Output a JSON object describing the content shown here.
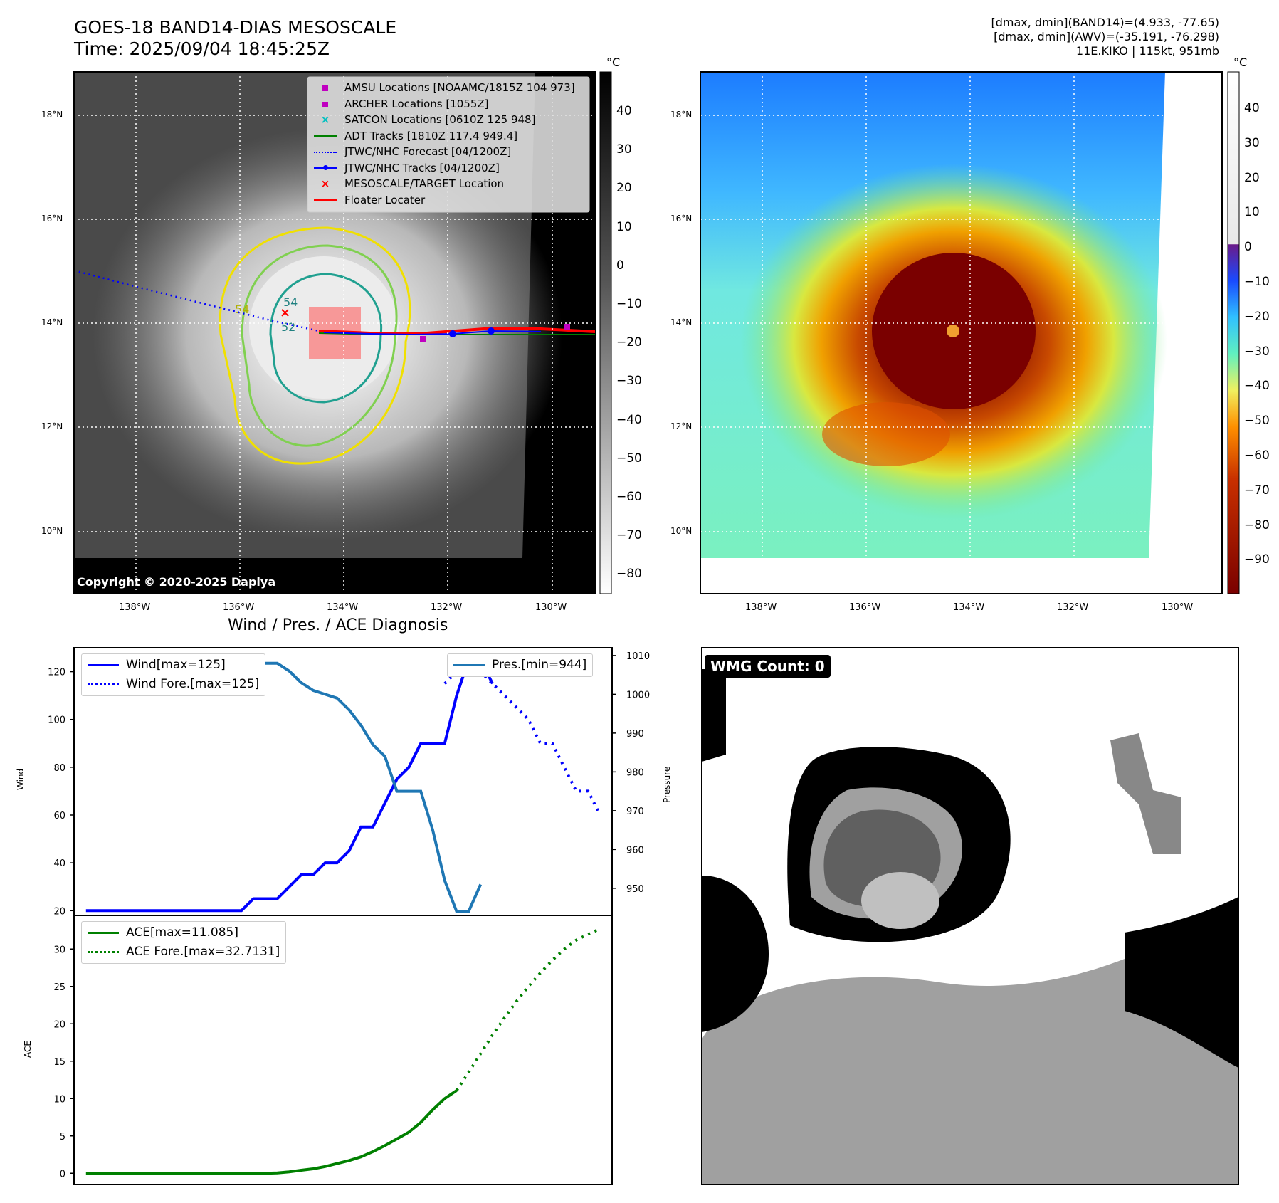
{
  "header": {
    "title_line1": "GOES-18 BAND14-DIAS MESOSCALE",
    "title_line2": "Time: 2025/09/04 18:45:25Z",
    "right_line1": "[dmax, dmin](BAND14)=(4.933, -77.65)",
    "right_line2": "[dmax, dmin](AWV)=(-35.191, -76.298)",
    "right_line3": "11E.KIKO | 115kt, 951mb"
  },
  "map_axes": {
    "lat_ticks": [
      "18°N",
      "16°N",
      "14°N",
      "12°N",
      "10°N"
    ],
    "lon_ticks": [
      "138°W",
      "136°W",
      "134°W",
      "132°W",
      "130°W"
    ]
  },
  "left_map": {
    "copyright": "Copyright © 2020-2025 Dapiya",
    "contour_labels": [
      "54",
      "52",
      "54"
    ],
    "legend": [
      {
        "label": "AMSU Locations [NOAAMC/1815Z 104 973]",
        "color": "#c000c0",
        "marker": "square"
      },
      {
        "label": "ARCHER Locations [1055Z]",
        "color": "#c000c0",
        "marker": "square"
      },
      {
        "label": "SATCON Locations [0610Z 125 948]",
        "color": "#00c0c0",
        "marker": "x"
      },
      {
        "label": "ADT Tracks [1810Z 117.4 949.4]",
        "color": "#008000",
        "marker": "line"
      },
      {
        "label": "JTWC/NHC Forecast [04/1200Z]",
        "color": "#0000ff",
        "marker": "dotted"
      },
      {
        "label": "JTWC/NHC Tracks [04/1200Z]",
        "color": "#0000ff",
        "marker": "line-dot"
      },
      {
        "label": "MESOSCALE/TARGET Location",
        "color": "#ff0000",
        "marker": "x"
      },
      {
        "label": "Floater Locater",
        "color": "#ff0000",
        "marker": "line"
      }
    ],
    "colorbar": {
      "unit": "°C",
      "ticks": [
        "40",
        "30",
        "20",
        "10",
        "0",
        "−10",
        "−20",
        "−30",
        "−40",
        "−50",
        "−60",
        "−70",
        "−80"
      ]
    }
  },
  "right_map": {
    "colorbar": {
      "unit": "°C",
      "ticks": [
        "40",
        "30",
        "20",
        "10",
        "0",
        "−10",
        "−20",
        "−30",
        "−40",
        "−50",
        "−60",
        "−70",
        "−80",
        "−90"
      ]
    }
  },
  "wmg": {
    "badge": "WMG Count: 0"
  },
  "chart_data": [
    {
      "type": "line",
      "title": "Wind / Pres. / ACE Diagnosis",
      "ylabel": "Wind",
      "ylabel_right": "Pressure",
      "ylim": [
        18,
        130
      ],
      "ylim_right": [
        943,
        1012
      ],
      "yticks": [
        20,
        40,
        60,
        80,
        100,
        120
      ],
      "yticks_right": [
        950,
        960,
        970,
        980,
        990,
        1000,
        1010
      ],
      "series": [
        {
          "name": "Wind[max=125]",
          "color": "#0000ff",
          "style": "solid",
          "x": [
            0,
            3,
            6,
            9,
            12,
            13,
            14,
            15,
            16,
            17,
            18,
            19,
            20,
            21,
            22,
            23,
            24,
            25,
            26,
            27,
            28,
            29,
            30,
            31,
            32,
            33,
            34,
            35,
            36,
            37,
            38
          ],
          "values": [
            20,
            20,
            20,
            20,
            20,
            20,
            25,
            25,
            25,
            30,
            35,
            35,
            40,
            40,
            45,
            55,
            55,
            65,
            75,
            80,
            90,
            90,
            90,
            110,
            125,
            125,
            115,
            null,
            null,
            null,
            null
          ]
        },
        {
          "name": "Wind Fore.[max=125]",
          "color": "#0000ff",
          "style": "dotted",
          "x": [
            30,
            31,
            32,
            33,
            34,
            35,
            36,
            37,
            38,
            39,
            40,
            41,
            42,
            43
          ],
          "values": [
            115,
            120,
            125,
            120,
            115,
            110,
            105,
            100,
            90,
            90,
            80,
            70,
            70,
            60
          ]
        },
        {
          "name": "Pres.[min=944]",
          "color": "#1f77b4",
          "style": "solid",
          "axis": "right",
          "x": [
            0,
            6,
            9,
            12,
            13,
            14,
            15,
            16,
            17,
            18,
            19,
            20,
            21,
            22,
            23,
            24,
            25,
            26,
            27,
            28,
            29,
            30,
            31,
            32,
            33,
            34
          ],
          "values": [
            1010,
            1010,
            1010,
            1010,
            1009,
            1009,
            1008,
            1008,
            1006,
            1003,
            1001,
            1000,
            999,
            996,
            992,
            987,
            984,
            975,
            975,
            975,
            965,
            952,
            944,
            944,
            951,
            null
          ]
        }
      ]
    },
    {
      "type": "line",
      "ylabel": "ACE",
      "ylim": [
        -1.5,
        34.5
      ],
      "yticks": [
        0,
        5,
        10,
        15,
        20,
        25,
        30
      ],
      "series": [
        {
          "name": "ACE[max=11.085]",
          "color": "#008000",
          "style": "solid",
          "x": [
            0,
            6,
            12,
            13,
            14,
            15,
            16,
            17,
            18,
            19,
            20,
            21,
            22,
            23,
            24,
            25,
            26,
            27,
            28,
            29,
            30,
            31,
            32,
            33,
            34
          ],
          "values": [
            0,
            0,
            0,
            0,
            0,
            0,
            0.05,
            0.2,
            0.4,
            0.6,
            0.9,
            1.3,
            1.7,
            2.2,
            2.9,
            3.7,
            4.6,
            5.5,
            6.8,
            8.5,
            10,
            11.085,
            null,
            null,
            null
          ]
        },
        {
          "name": "ACE Fore.[max=32.7131]",
          "color": "#008000",
          "style": "dotted",
          "x": [
            31,
            32,
            33,
            34,
            35,
            36,
            37,
            38,
            39,
            40,
            41,
            42,
            43
          ],
          "values": [
            11.085,
            13.5,
            16,
            18.5,
            20.8,
            23,
            25,
            26.8,
            28.5,
            30,
            31.2,
            32,
            32.7131
          ]
        }
      ]
    }
  ]
}
